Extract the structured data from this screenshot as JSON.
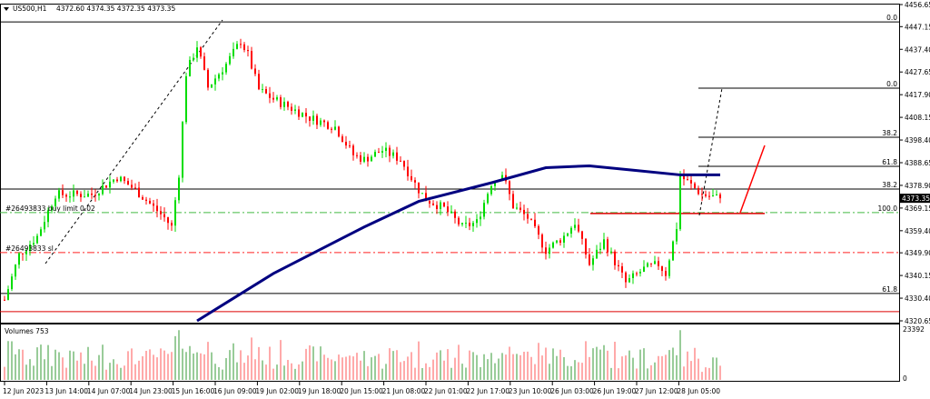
{
  "header": {
    "symbol": "US500,H1",
    "ohlc": "4372.60 4374.35 4372.35 4373.35"
  },
  "chart_data": {
    "type": "candlestick",
    "ylim": [
      4320.65,
      4456.65
    ],
    "y_ticks": [
      "4456.65",
      "4447.15",
      "4437.40",
      "4427.65",
      "4417.90",
      "4408.15",
      "4398.40",
      "4388.65",
      "4378.90",
      "4369.15",
      "4359.40",
      "4349.90",
      "4340.15",
      "4330.40",
      "4320.65"
    ],
    "current_price": "4373.35",
    "x_ticks": [
      "12 Jun 2023",
      "13 Jun 14:00",
      "14 Jun 07:00",
      "14 Jun 23:00",
      "15 Jun 16:00",
      "16 Jun 09:00",
      "19 Jun 02:00",
      "19 Jun 18:00",
      "20 Jun 15:00",
      "21 Jun 08:00",
      "22 Jun 01:00",
      "22 Jun 17:00",
      "23 Jun 10:00",
      "26 Jun 03:00",
      "26 Jun 19:00",
      "27 Jun 12:00",
      "28 Jun 05:00"
    ],
    "bars_total": 198,
    "close_path": [
      [
        0,
        4329.7
      ],
      [
        4,
        4349
      ],
      [
        9,
        4357
      ],
      [
        14,
        4375
      ],
      [
        24,
        4375
      ],
      [
        31,
        4382.5
      ],
      [
        36,
        4377
      ],
      [
        44,
        4365
      ],
      [
        46,
        4361
      ],
      [
        48,
        4384
      ],
      [
        50,
        4427
      ],
      [
        53,
        4439
      ],
      [
        56,
        4421
      ],
      [
        61,
        4431
      ],
      [
        65,
        4441
      ],
      [
        67,
        4435
      ],
      [
        70,
        4420
      ],
      [
        74,
        4416
      ],
      [
        79,
        4412
      ],
      [
        84,
        4408
      ],
      [
        91,
        4404
      ],
      [
        96,
        4392
      ],
      [
        99,
        4390
      ],
      [
        104,
        4394
      ],
      [
        109,
        4390
      ],
      [
        114,
        4377
      ],
      [
        116,
        4373
      ],
      [
        121,
        4369
      ],
      [
        126,
        4361
      ],
      [
        130,
        4363
      ],
      [
        134,
        4380
      ],
      [
        137,
        4384
      ],
      [
        140,
        4370
      ],
      [
        144,
        4365
      ],
      [
        149,
        4351
      ],
      [
        154,
        4357
      ],
      [
        157,
        4363
      ],
      [
        161,
        4345
      ],
      [
        165,
        4355
      ],
      [
        169,
        4343
      ],
      [
        171,
        4337
      ],
      [
        176,
        4343
      ],
      [
        180,
        4345
      ],
      [
        182,
        4341
      ],
      [
        185,
        4361
      ],
      [
        186,
        4383
      ],
      [
        189,
        4379
      ],
      [
        192,
        4375
      ],
      [
        197,
        4373.35
      ]
    ],
    "moving_average": [
      [
        53,
        4320.65
      ],
      [
        74,
        4341
      ],
      [
        99,
        4361
      ],
      [
        114,
        4372
      ],
      [
        134,
        4380
      ],
      [
        149,
        4386.5
      ],
      [
        161,
        4387.3
      ],
      [
        174,
        4385.3
      ],
      [
        186,
        4383.4
      ],
      [
        197,
        4383.4
      ]
    ],
    "levels": [
      {
        "price": 4449.2,
        "label": "0.0",
        "style": "solid",
        "color": "#000000",
        "from_bar": 0
      },
      {
        "price": 4420.7,
        "label": "0.0",
        "style": "solid",
        "color": "#000000",
        "from_bar": 191
      },
      {
        "price": 4399.6,
        "label": "38.2",
        "style": "solid",
        "color": "#000000",
        "from_bar": 191
      },
      {
        "price": 4387.1,
        "label": "61.8",
        "style": "solid",
        "color": "#000000",
        "from_bar": 191
      },
      {
        "price": 4377.3,
        "label": "38.2",
        "style": "solid",
        "color": "#000000",
        "from_bar": 0
      },
      {
        "price": 4367.2,
        "label": "100.0",
        "style": "dashdot",
        "color": "#44bb44",
        "from_bar": 0
      },
      {
        "price": 4350.0,
        "label": "",
        "style": "dashdot",
        "color": "#ff2222",
        "from_bar": 0
      },
      {
        "price": 4332.4,
        "label": "61.8",
        "style": "solid",
        "color": "#000000",
        "from_bar": 0
      },
      {
        "price": 4324.6,
        "label": "",
        "style": "solid",
        "color": "#dd0000",
        "from_bar": 0
      }
    ],
    "orders": [
      {
        "label": "#26493833 buy limit 0.02",
        "price": 4367.2
      },
      {
        "label": "#26493833 sl",
        "price": 4350.0
      }
    ],
    "volume_label": "Volumes 753",
    "volume_max": "23392",
    "volume_min": "0",
    "colors": {
      "bull": "#00dd00",
      "bear": "#ff0000",
      "ma": "#000080",
      "vol_bull": "#339933",
      "vol_bear": "#ff5555"
    }
  }
}
